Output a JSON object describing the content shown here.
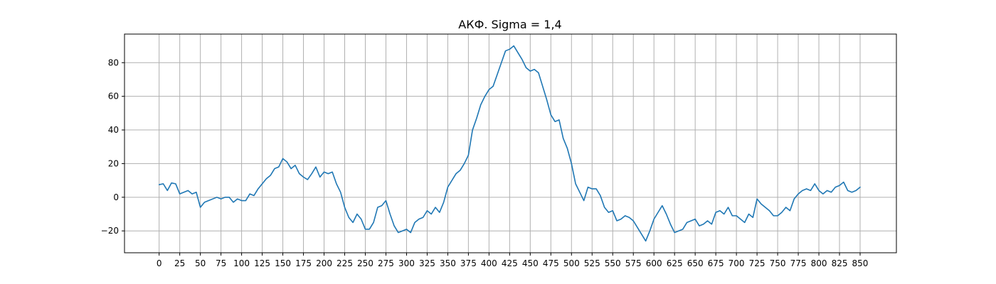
{
  "chart_data": {
    "type": "line",
    "title": "АКФ. Sigma = 1,4",
    "xlabel": "",
    "ylabel": "",
    "xlim": [
      -42,
      894
    ],
    "ylim": [
      -33,
      97
    ],
    "grid": true,
    "xticks": [
      0,
      25,
      50,
      75,
      100,
      125,
      150,
      175,
      200,
      225,
      250,
      275,
      300,
      325,
      350,
      375,
      400,
      425,
      450,
      475,
      500,
      525,
      550,
      575,
      600,
      625,
      650,
      675,
      700,
      725,
      750,
      775,
      800,
      825,
      850
    ],
    "yticks": [
      -20,
      0,
      20,
      40,
      60,
      80
    ],
    "series_color": "#1f77b4",
    "series": [
      {
        "x": [
          0,
          5,
          10,
          15,
          20,
          25,
          30,
          35,
          40,
          45,
          50,
          55,
          60,
          65,
          70,
          75,
          80,
          85,
          90,
          95,
          100,
          105,
          110,
          115,
          120,
          125,
          130,
          135,
          140,
          145,
          150,
          155,
          160,
          165,
          170,
          175,
          180,
          185,
          190,
          195,
          200,
          205,
          210,
          215,
          220,
          225,
          230,
          235,
          240,
          245,
          250,
          255,
          260,
          265,
          270,
          275,
          280,
          285,
          290,
          295,
          300,
          305,
          310,
          315,
          320,
          325,
          330,
          335,
          340,
          345,
          350,
          355,
          360,
          365,
          370,
          375,
          380,
          385,
          390,
          395,
          400,
          405,
          410,
          415,
          420,
          425,
          430,
          435,
          440,
          445,
          450,
          455,
          460,
          465,
          470,
          475,
          480,
          485,
          490,
          495,
          500,
          505,
          510,
          515,
          520,
          525,
          530,
          535,
          540,
          545,
          550,
          555,
          560,
          565,
          570,
          575,
          580,
          585,
          590,
          595,
          600,
          605,
          610,
          615,
          620,
          625,
          630,
          635,
          640,
          645,
          650,
          655,
          660,
          665,
          670,
          675,
          680,
          685,
          690,
          695,
          700,
          705,
          710,
          715,
          720,
          725,
          730,
          735,
          740,
          745,
          750,
          755,
          760,
          765,
          770,
          775,
          780,
          785,
          790,
          795,
          800,
          805,
          810,
          815,
          820,
          825,
          830,
          835,
          840,
          845,
          850
        ],
        "values": [
          7.5,
          8,
          4,
          8.5,
          8,
          2,
          3,
          4,
          2,
          3,
          -6,
          -3,
          -2,
          -1,
          0,
          -1,
          0,
          0,
          -3,
          -1,
          -2,
          -2,
          2,
          1,
          5,
          8,
          11,
          13,
          17,
          18,
          23,
          21,
          17,
          19,
          14,
          12,
          10.5,
          14,
          18,
          12,
          15,
          14,
          15,
          8,
          3,
          -6,
          -12,
          -15,
          -10,
          -13,
          -19,
          -19,
          -15,
          -6,
          -5,
          -2,
          -10,
          -17,
          -21,
          -20,
          -19,
          -21,
          -15,
          -13,
          -12,
          -8,
          -10,
          -6,
          -9,
          -3,
          6,
          10,
          14,
          16,
          20,
          25,
          40,
          47,
          55,
          60,
          64,
          66,
          73,
          80,
          87,
          88,
          90,
          86,
          82,
          77,
          75,
          76,
          74,
          66,
          58,
          49,
          45,
          46,
          35,
          29,
          20,
          8,
          3,
          -2,
          6,
          5,
          5,
          1,
          -6,
          -9,
          -8,
          -14,
          -13,
          -11,
          -12,
          -14,
          -18,
          -22,
          -26,
          -20,
          -13,
          -9,
          -5,
          -10,
          -16,
          -21,
          -20,
          -19,
          -15,
          -14,
          -13,
          -17,
          -16,
          -14,
          -16,
          -9,
          -8,
          -10,
          -6,
          -11,
          -11,
          -13,
          -15,
          -10,
          -12,
          -1,
          -4,
          -6,
          -8,
          -11,
          -11,
          -9,
          -6,
          -8,
          -1,
          2,
          4,
          5,
          4,
          8,
          4,
          2,
          4,
          3,
          6,
          7,
          9,
          4,
          3,
          4,
          6
        ]
      }
    ]
  }
}
